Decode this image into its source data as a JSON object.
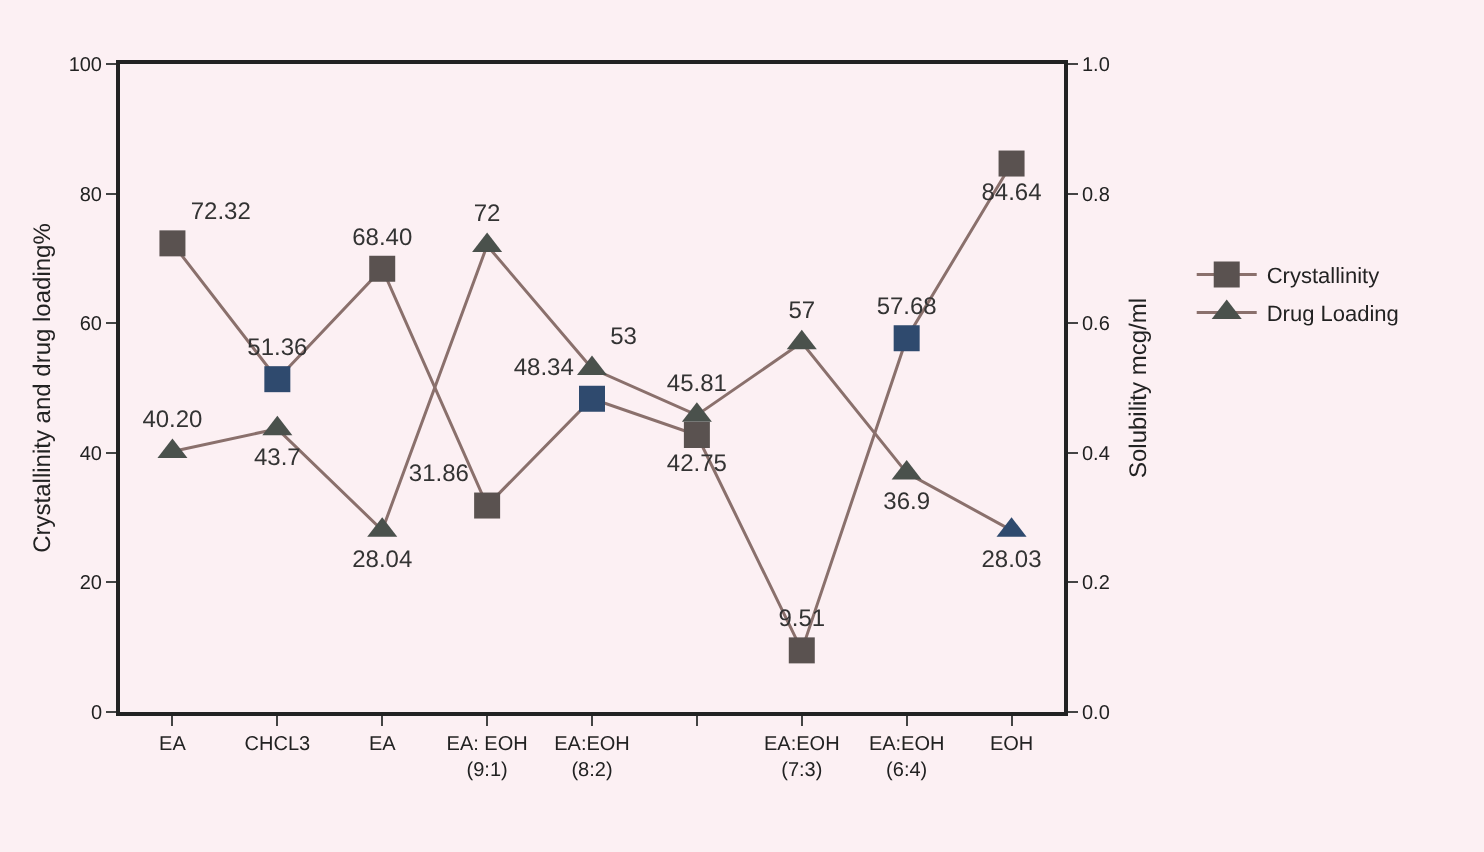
{
  "chart_data": {
    "type": "line",
    "categories": [
      "EA",
      "CHCL3",
      "EA",
      "EA: EOH (9:1)",
      "EA:EOH (8:2)",
      null,
      "EA:EOH(7:3)",
      "EA:EOH(6:4)",
      "EOH"
    ],
    "ylabel": "Crystallinity and drug loading%",
    "y2label": "Solubility mcg/ml",
    "ylim": [
      0,
      100
    ],
    "yticks": [
      0,
      20,
      40,
      60,
      80,
      100
    ],
    "y2lim": [
      0,
      1
    ],
    "y2ticks": [
      {
        "value": 0,
        "label": "0.0"
      },
      0.2,
      0.4,
      0.6,
      0.8,
      {
        "value": 1,
        "label": "1.0"
      }
    ],
    "series": [
      {
        "name": "Crystallinity",
        "color": "#8a706c",
        "marker": "square",
        "colors": [
          "#5a5250",
          "#2f4a6e",
          "#5a5250",
          "#5a5250",
          "#2f4a6e",
          "#5a5250",
          "#5a5250",
          "#2f4a6e",
          "#5a5250"
        ],
        "values": [
          72.32,
          51.36,
          68.4,
          31.86,
          48.34,
          42.75,
          9.51,
          57.68,
          84.64
        ],
        "value_labels": [
          "72.32",
          "51.36",
          "68.40",
          "31.86",
          "48.34",
          "42.75",
          "9.51",
          "57.68",
          "84.64"
        ]
      },
      {
        "name": "Drug Loading",
        "color": "#8a706c",
        "marker": "triangle",
        "colors": [
          "#4a514c",
          "#4a514c",
          "#4a514c",
          "#4a514c",
          "#4a514c",
          "#4a514c",
          "#4a514c",
          "#4a514c",
          "#2f4a6e"
        ],
        "values": [
          40.2,
          43.7,
          28.04,
          72,
          53,
          45.81,
          57,
          36.9,
          28.03
        ],
        "value_labels": [
          "40.20",
          "43.7",
          "28.04",
          "72",
          "53",
          "45.81",
          "57",
          "36.9",
          "28.03"
        ]
      }
    ],
    "legend": "right",
    "grid": false
  }
}
